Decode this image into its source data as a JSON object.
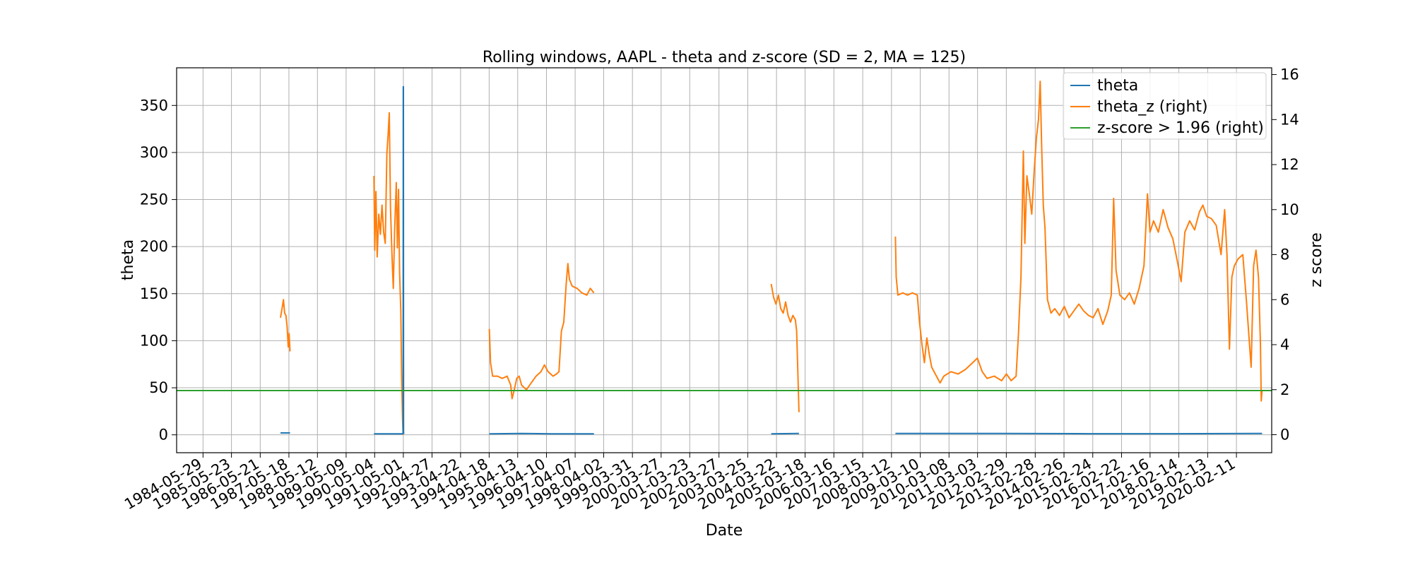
{
  "chart_data": {
    "type": "line",
    "title": "Rolling windows, AAPL - theta and z-score (SD = 2, MA = 125)",
    "xlabel": "Date",
    "ylabel": "theta",
    "ylabel_right": "z score",
    "xlim": [
      "1983-07-01",
      "2021-05-01"
    ],
    "ylim": [
      -19,
      390
    ],
    "ylim_right": [
      -0.8,
      16.3
    ],
    "yticks": [
      0,
      50,
      100,
      150,
      200,
      250,
      300,
      350
    ],
    "yticks_right": [
      0,
      2,
      4,
      6,
      8,
      10,
      12,
      14,
      16
    ],
    "xticks": [
      "1984-05-29",
      "1985-05-23",
      "1986-05-21",
      "1987-05-18",
      "1988-05-12",
      "1989-05-09",
      "1990-05-04",
      "1991-05-01",
      "1992-04-27",
      "1993-04-22",
      "1994-04-18",
      "1995-04-13",
      "1996-04-10",
      "1997-04-07",
      "1998-04-02",
      "1999-03-31",
      "2000-03-27",
      "2001-03-23",
      "2002-03-27",
      "2003-03-25",
      "2004-03-22",
      "2005-03-18",
      "2006-03-16",
      "2007-03-15",
      "2008-03-12",
      "2009-03-10",
      "2010-03-08",
      "2011-03-03",
      "2012-02-29",
      "2013-02-28",
      "2014-02-26",
      "2015-02-24",
      "2016-02-22",
      "2017-02-16",
      "2018-02-14",
      "2019-02-13",
      "2020-02-11"
    ],
    "grid": true,
    "legend_position": "top-right",
    "series": [
      {
        "name": "theta",
        "axis": "left",
        "color": "#1f77b4",
        "segments": [
          [
            [
              "1987-02-01",
              2
            ],
            [
              "1987-06-01",
              2
            ]
          ],
          [
            [
              "1990-04-25",
              1
            ],
            [
              "1991-04-20",
              1
            ],
            [
              "1991-04-28",
              2
            ],
            [
              "1991-04-30",
              370
            ],
            [
              "1991-05-02",
              370
            ],
            [
              "1991-05-04",
              2
            ],
            [
              "1991-05-10",
              1
            ]
          ],
          [
            [
              "1994-04-20",
              1
            ],
            [
              "1995-06-01",
              1.5
            ],
            [
              "1996-06-01",
              1
            ],
            [
              "1997-06-01",
              1
            ],
            [
              "1997-11-30",
              1
            ]
          ],
          [
            [
              "2004-01-15",
              1
            ],
            [
              "2004-12-31",
              1.5
            ]
          ],
          [
            [
              "2008-05-01",
              1.5
            ],
            [
              "2010-01-01",
              1.5
            ],
            [
              "2012-01-01",
              1.5
            ],
            [
              "2015-01-01",
              1.2
            ],
            [
              "2018-01-01",
              1.2
            ],
            [
              "2020-12-31",
              1.5
            ]
          ]
        ]
      },
      {
        "name": "theta_z (right)",
        "axis": "right",
        "color": "#ff7f0e",
        "segments": [
          [
            [
              "1987-02-01",
              5.2
            ],
            [
              "1987-02-20",
              5.6
            ],
            [
              "1987-03-10",
              6.0
            ],
            [
              "1987-03-25",
              5.4
            ],
            [
              "1987-04-10",
              5.3
            ],
            [
              "1987-04-25",
              4.8
            ],
            [
              "1987-05-10",
              3.9
            ],
            [
              "1987-05-20",
              4.5
            ],
            [
              "1987-06-01",
              3.7
            ]
          ],
          [
            [
              "1990-04-25",
              11.5
            ],
            [
              "1990-05-05",
              8.2
            ],
            [
              "1990-05-20",
              10.8
            ],
            [
              "1990-06-05",
              7.9
            ],
            [
              "1990-06-25",
              9.8
            ],
            [
              "1990-07-15",
              8.9
            ],
            [
              "1990-08-05",
              10.2
            ],
            [
              "1990-08-25",
              9.0
            ],
            [
              "1990-09-15",
              8.5
            ],
            [
              "1990-10-05",
              12.5
            ],
            [
              "1990-10-20",
              13.3
            ],
            [
              "1990-11-05",
              14.3
            ],
            [
              "1990-11-20",
              10.1
            ],
            [
              "1990-12-10",
              7.8
            ],
            [
              "1990-12-25",
              6.5
            ],
            [
              "1991-01-10",
              9.0
            ],
            [
              "1991-02-01",
              11.2
            ],
            [
              "1991-02-15",
              8.3
            ],
            [
              "1991-03-01",
              10.9
            ],
            [
              "1991-03-15",
              7.2
            ],
            [
              "1991-03-30",
              5.5
            ],
            [
              "1991-04-10",
              2.5
            ],
            [
              "1991-04-20",
              0.8
            ],
            [
              "1991-04-28",
              0.0
            ]
          ],
          [
            [
              "1994-04-20",
              4.7
            ],
            [
              "1994-05-05",
              3.2
            ],
            [
              "1994-06-01",
              2.6
            ],
            [
              "1994-08-01",
              2.6
            ],
            [
              "1994-10-01",
              2.5
            ],
            [
              "1994-12-01",
              2.6
            ],
            [
              "1995-01-15",
              2.2
            ],
            [
              "1995-02-01",
              1.6
            ],
            [
              "1995-03-01",
              2.0
            ],
            [
              "1995-04-01",
              2.5
            ],
            [
              "1995-05-01",
              2.6
            ],
            [
              "1995-06-01",
              2.2
            ],
            [
              "1995-08-01",
              2.0
            ],
            [
              "1995-10-01",
              2.3
            ],
            [
              "1995-12-01",
              2.6
            ],
            [
              "1996-02-01",
              2.8
            ],
            [
              "1996-03-15",
              3.1
            ],
            [
              "1996-05-01",
              2.8
            ],
            [
              "1996-07-01",
              2.6
            ],
            [
              "1996-08-15",
              2.7
            ],
            [
              "1996-09-15",
              2.8
            ],
            [
              "1996-10-15",
              4.6
            ],
            [
              "1996-11-15",
              5.0
            ],
            [
              "1996-12-15",
              6.7
            ],
            [
              "1997-01-05",
              7.6
            ],
            [
              "1997-01-25",
              6.9
            ],
            [
              "1997-03-01",
              6.6
            ],
            [
              "1997-05-01",
              6.5
            ],
            [
              "1997-07-01",
              6.3
            ],
            [
              "1997-09-01",
              6.2
            ],
            [
              "1997-10-15",
              6.5
            ],
            [
              "1997-11-30",
              6.3
            ]
          ],
          [
            [
              "2004-01-15",
              6.7
            ],
            [
              "2004-02-15",
              6.1
            ],
            [
              "2004-03-15",
              5.8
            ],
            [
              "2004-04-15",
              6.2
            ],
            [
              "2004-05-15",
              5.6
            ],
            [
              "2004-06-15",
              5.4
            ],
            [
              "2004-07-15",
              5.9
            ],
            [
              "2004-08-15",
              5.3
            ],
            [
              "2004-09-15",
              5.0
            ],
            [
              "2004-10-15",
              5.3
            ],
            [
              "2004-11-15",
              5.1
            ],
            [
              "2004-12-01",
              4.6
            ],
            [
              "2004-12-15",
              3.0
            ],
            [
              "2004-12-31",
              1.0
            ]
          ],
          [
            [
              "2008-05-01",
              8.8
            ],
            [
              "2008-05-10",
              7.0
            ],
            [
              "2008-06-01",
              6.2
            ],
            [
              "2008-08-01",
              6.3
            ],
            [
              "2008-10-01",
              6.2
            ],
            [
              "2008-12-01",
              6.3
            ],
            [
              "2009-02-01",
              6.2
            ],
            [
              "2009-03-01",
              5.0
            ],
            [
              "2009-04-01",
              4.0
            ],
            [
              "2009-05-01",
              3.2
            ],
            [
              "2009-06-01",
              4.3
            ],
            [
              "2009-07-01",
              3.6
            ],
            [
              "2009-08-01",
              3.0
            ],
            [
              "2009-10-01",
              2.6
            ],
            [
              "2009-11-15",
              2.3
            ],
            [
              "2010-01-01",
              2.6
            ],
            [
              "2010-04-01",
              2.8
            ],
            [
              "2010-07-01",
              2.7
            ],
            [
              "2010-10-01",
              2.9
            ],
            [
              "2011-01-01",
              3.2
            ],
            [
              "2011-03-01",
              3.4
            ],
            [
              "2011-05-01",
              2.8
            ],
            [
              "2011-07-01",
              2.5
            ],
            [
              "2011-10-01",
              2.6
            ],
            [
              "2012-01-01",
              2.4
            ],
            [
              "2012-03-01",
              2.7
            ],
            [
              "2012-05-01",
              2.4
            ],
            [
              "2012-07-01",
              2.6
            ],
            [
              "2012-08-01",
              4.5
            ],
            [
              "2012-09-01",
              7.0
            ],
            [
              "2012-10-01",
              12.6
            ],
            [
              "2012-10-20",
              8.5
            ],
            [
              "2012-11-15",
              11.5
            ],
            [
              "2012-12-15",
              10.7
            ],
            [
              "2013-01-15",
              9.8
            ],
            [
              "2013-02-15",
              11.7
            ],
            [
              "2013-03-15",
              13.2
            ],
            [
              "2013-04-10",
              14.0
            ],
            [
              "2013-05-01",
              15.7
            ],
            [
              "2013-05-20",
              12.8
            ],
            [
              "2013-06-10",
              10.2
            ],
            [
              "2013-07-01",
              9.2
            ],
            [
              "2013-08-01",
              6.0
            ],
            [
              "2013-09-15",
              5.4
            ],
            [
              "2013-11-01",
              5.6
            ],
            [
              "2014-01-01",
              5.3
            ],
            [
              "2014-03-01",
              5.7
            ],
            [
              "2014-05-01",
              5.2
            ],
            [
              "2014-07-01",
              5.5
            ],
            [
              "2014-09-01",
              5.8
            ],
            [
              "2014-11-01",
              5.5
            ],
            [
              "2015-01-01",
              5.3
            ],
            [
              "2015-03-01",
              5.2
            ],
            [
              "2015-05-01",
              5.6
            ],
            [
              "2015-07-01",
              4.9
            ],
            [
              "2015-09-01",
              5.5
            ],
            [
              "2015-10-15",
              6.2
            ],
            [
              "2015-11-15",
              10.5
            ],
            [
              "2015-12-15",
              7.3
            ],
            [
              "2016-02-01",
              6.2
            ],
            [
              "2016-04-01",
              6.0
            ],
            [
              "2016-06-01",
              6.3
            ],
            [
              "2016-08-01",
              5.8
            ],
            [
              "2016-10-01",
              6.5
            ],
            [
              "2016-12-01",
              7.5
            ],
            [
              "2017-01-15",
              10.7
            ],
            [
              "2017-02-15",
              9.0
            ],
            [
              "2017-04-01",
              9.5
            ],
            [
              "2017-06-01",
              9.0
            ],
            [
              "2017-08-01",
              10.0
            ],
            [
              "2017-10-01",
              9.2
            ],
            [
              "2017-12-01",
              8.7
            ],
            [
              "2018-02-01",
              7.6
            ],
            [
              "2018-03-15",
              6.8
            ],
            [
              "2018-05-01",
              9.0
            ],
            [
              "2018-07-01",
              9.5
            ],
            [
              "2018-09-01",
              9.1
            ],
            [
              "2018-11-01",
              9.9
            ],
            [
              "2018-12-15",
              10.2
            ],
            [
              "2019-02-01",
              9.7
            ],
            [
              "2019-04-01",
              9.6
            ],
            [
              "2019-06-01",
              9.3
            ],
            [
              "2019-08-01",
              8.0
            ],
            [
              "2019-09-15",
              10.0
            ],
            [
              "2019-10-15",
              8.0
            ],
            [
              "2019-11-15",
              3.8
            ],
            [
              "2019-12-15",
              7.0
            ],
            [
              "2020-01-15",
              7.5
            ],
            [
              "2020-03-01",
              7.8
            ],
            [
              "2020-05-01",
              8.0
            ],
            [
              "2020-06-15",
              6.0
            ],
            [
              "2020-07-15",
              4.5
            ],
            [
              "2020-08-15",
              3.0
            ],
            [
              "2020-09-15",
              7.5
            ],
            [
              "2020-10-15",
              8.2
            ],
            [
              "2020-11-15",
              7.0
            ],
            [
              "2020-12-10",
              4.0
            ],
            [
              "2020-12-20",
              1.5
            ],
            [
              "2020-12-31",
              2.0
            ]
          ]
        ]
      },
      {
        "name": "z-score > 1.96 (right)",
        "axis": "right",
        "color": "#2ca02c",
        "constant": 1.96
      }
    ]
  }
}
